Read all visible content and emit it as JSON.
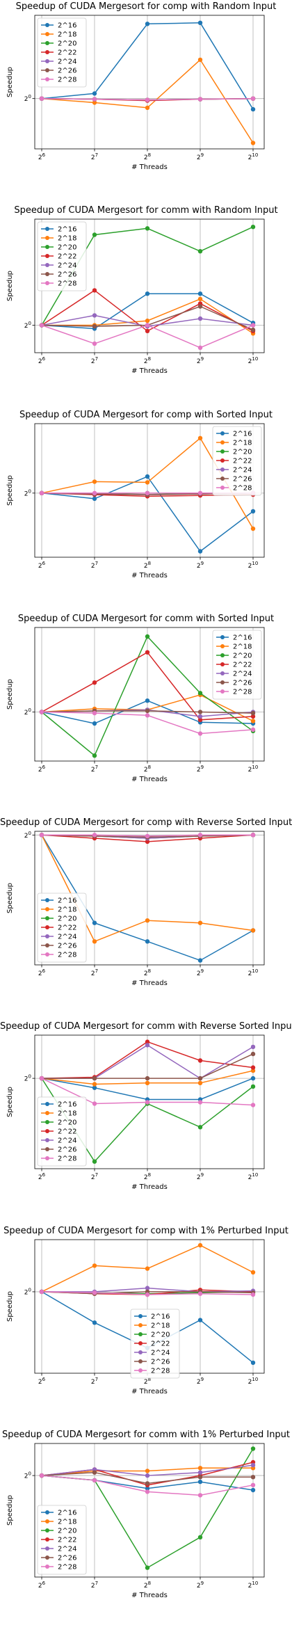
{
  "chart_data": [
    {
      "type": "line",
      "title": "Speedup of CUDA Mergesort for comp with Random Input",
      "xlabel": "# Threads",
      "ylabel": "Speedup",
      "x_ticks": [
        {
          "b": "2",
          "e": "6"
        },
        {
          "b": "2",
          "e": "7"
        },
        {
          "b": "2",
          "e": "8"
        },
        {
          "b": "2",
          "e": "9"
        },
        {
          "b": "2",
          "e": "10"
        }
      ],
      "y_tick": {
        "b": "2",
        "e": "0"
      },
      "grid": true,
      "legend": "top-left",
      "series": [
        {
          "name": "2^16",
          "color": "#1f77b4",
          "values": [
            1.0,
            1.08,
            3.1,
            3.15,
            0.85
          ]
        },
        {
          "name": "2^18",
          "color": "#ff7f0e",
          "values": [
            1.0,
            0.94,
            0.87,
            1.8,
            0.51
          ]
        },
        {
          "name": "2^20",
          "color": "#2ca02c",
          "values": [
            1.0,
            0.99,
            0.98,
            0.99,
            1.0
          ]
        },
        {
          "name": "2^22",
          "color": "#d62728",
          "values": [
            1.0,
            0.99,
            0.97,
            0.99,
            1.0
          ]
        },
        {
          "name": "2^24",
          "color": "#9467bd",
          "values": [
            1.0,
            0.99,
            0.98,
            0.99,
            1.0
          ]
        },
        {
          "name": "2^26",
          "color": "#8c564b",
          "values": [
            1.0,
            0.99,
            0.98,
            0.99,
            1.0
          ]
        },
        {
          "name": "2^28",
          "color": "#e377c2",
          "values": [
            1.0,
            0.99,
            0.98,
            0.99,
            1.0
          ]
        }
      ]
    },
    {
      "type": "line",
      "title": "Speedup of CUDA Mergesort for comm with Random Input",
      "xlabel": "# Threads",
      "ylabel": "Speedup",
      "x_ticks": [
        {
          "b": "2",
          "e": "6"
        },
        {
          "b": "2",
          "e": "7"
        },
        {
          "b": "2",
          "e": "8"
        },
        {
          "b": "2",
          "e": "9"
        },
        {
          "b": "2",
          "e": "10"
        }
      ],
      "y_tick": {
        "b": "2",
        "e": "0"
      },
      "grid": true,
      "legend": "top-left",
      "series": [
        {
          "name": "2^16",
          "color": "#1f77b4",
          "values": [
            1.0,
            0.97,
            1.32,
            1.32,
            1.02
          ]
        },
        {
          "name": "2^18",
          "color": "#ff7f0e",
          "values": [
            1.0,
            1.0,
            1.04,
            1.26,
            0.93
          ]
        },
        {
          "name": "2^20",
          "color": "#2ca02c",
          "values": [
            1.0,
            2.22,
            2.35,
            1.92,
            2.38
          ]
        },
        {
          "name": "2^22",
          "color": "#d62728",
          "values": [
            1.0,
            1.36,
            0.95,
            1.21,
            0.95
          ]
        },
        {
          "name": "2^24",
          "color": "#9467bd",
          "values": [
            1.0,
            1.09,
            0.99,
            1.06,
            1.0
          ]
        },
        {
          "name": "2^26",
          "color": "#8c564b",
          "values": [
            1.0,
            0.99,
            1.0,
            1.18,
            0.96
          ]
        },
        {
          "name": "2^28",
          "color": "#e377c2",
          "values": [
            1.0,
            0.85,
            1.0,
            0.82,
            1.0
          ]
        }
      ]
    },
    {
      "type": "line",
      "title": "Speedup of CUDA Mergesort for comp with Sorted Input",
      "xlabel": "# Threads",
      "ylabel": "Speedup",
      "x_ticks": [
        {
          "b": "2",
          "e": "6"
        },
        {
          "b": "2",
          "e": "7"
        },
        {
          "b": "2",
          "e": "8"
        },
        {
          "b": "2",
          "e": "9"
        },
        {
          "b": "2",
          "e": "10"
        }
      ],
      "y_tick": {
        "b": "2",
        "e": "0"
      },
      "grid": true,
      "legend": "top-right",
      "series": [
        {
          "name": "2^16",
          "color": "#1f77b4",
          "values": [
            1.0,
            0.93,
            1.24,
            0.47,
            0.79
          ]
        },
        {
          "name": "2^18",
          "color": "#ff7f0e",
          "values": [
            1.0,
            1.16,
            1.15,
            2.04,
            0.63
          ]
        },
        {
          "name": "2^20",
          "color": "#2ca02c",
          "values": [
            1.0,
            0.99,
            1.0,
            0.99,
            1.0
          ]
        },
        {
          "name": "2^22",
          "color": "#d62728",
          "values": [
            1.0,
            0.98,
            0.96,
            0.97,
            0.98
          ]
        },
        {
          "name": "2^24",
          "color": "#9467bd",
          "values": [
            1.0,
            0.99,
            0.98,
            0.99,
            1.0
          ]
        },
        {
          "name": "2^26",
          "color": "#8c564b",
          "values": [
            1.0,
            0.99,
            0.98,
            0.99,
            1.0
          ]
        },
        {
          "name": "2^28",
          "color": "#e377c2",
          "values": [
            1.0,
            1.0,
            1.0,
            1.0,
            1.0
          ]
        }
      ]
    },
    {
      "type": "line",
      "title": "Speedup of CUDA Mergesort for comm with Sorted Input",
      "xlabel": "# Threads",
      "ylabel": "Speedup",
      "x_ticks": [
        {
          "b": "2",
          "e": "6"
        },
        {
          "b": "2",
          "e": "7"
        },
        {
          "b": "2",
          "e": "8"
        },
        {
          "b": "2",
          "e": "9"
        },
        {
          "b": "2",
          "e": "10"
        }
      ],
      "y_tick": {
        "b": "2",
        "e": "0"
      },
      "grid": true,
      "legend": "top-right",
      "series": [
        {
          "name": "2^16",
          "color": "#1f77b4",
          "values": [
            1.0,
            0.9,
            1.11,
            0.91,
            0.9
          ]
        },
        {
          "name": "2^18",
          "color": "#ff7f0e",
          "values": [
            1.0,
            1.03,
            1.02,
            1.17,
            0.92
          ]
        },
        {
          "name": "2^20",
          "color": "#2ca02c",
          "values": [
            1.0,
            0.67,
            2.0,
            1.19,
            0.84
          ]
        },
        {
          "name": "2^22",
          "color": "#d62728",
          "values": [
            1.0,
            1.31,
            1.73,
            0.93,
            0.96
          ]
        },
        {
          "name": "2^24",
          "color": "#9467bd",
          "values": [
            1.0,
            1.01,
            1.02,
            0.96,
            1.0
          ]
        },
        {
          "name": "2^26",
          "color": "#8c564b",
          "values": [
            1.0,
            1.01,
            1.01,
            1.0,
            0.99
          ]
        },
        {
          "name": "2^28",
          "color": "#e377c2",
          "values": [
            1.0,
            0.99,
            0.97,
            0.82,
            0.85
          ]
        }
      ]
    },
    {
      "type": "line",
      "title": "Speedup of CUDA Mergesort for comp with Reverse Sorted Input",
      "xlabel": "# Threads",
      "ylabel": "Speedup",
      "x_ticks": [
        {
          "b": "2",
          "e": "6"
        },
        {
          "b": "2",
          "e": "7"
        },
        {
          "b": "2",
          "e": "8"
        },
        {
          "b": "2",
          "e": "9"
        },
        {
          "b": "2",
          "e": "10"
        }
      ],
      "y_tick": {
        "b": "2",
        "e": "0"
      },
      "grid": true,
      "legend": "bottom-left",
      "series": [
        {
          "name": "2^16",
          "color": "#1f77b4",
          "values": [
            1.0,
            0.44,
            0.37,
            0.31,
            0.41
          ]
        },
        {
          "name": "2^18",
          "color": "#ff7f0e",
          "values": [
            1.0,
            0.37,
            0.45,
            0.44,
            0.41
          ]
        },
        {
          "name": "2^20",
          "color": "#2ca02c",
          "values": [
            1.0,
            0.99,
            0.97,
            0.99,
            1.0
          ]
        },
        {
          "name": "2^22",
          "color": "#d62728",
          "values": [
            1.0,
            0.97,
            0.94,
            0.97,
            1.0
          ]
        },
        {
          "name": "2^24",
          "color": "#9467bd",
          "values": [
            1.0,
            0.99,
            0.97,
            0.99,
            1.0
          ]
        },
        {
          "name": "2^26",
          "color": "#8c564b",
          "values": [
            1.0,
            0.99,
            0.98,
            0.99,
            1.0
          ]
        },
        {
          "name": "2^28",
          "color": "#e377c2",
          "values": [
            1.0,
            1.0,
            0.99,
            1.0,
            1.0
          ]
        }
      ]
    },
    {
      "type": "line",
      "title": "Speedup of CUDA Mergesort for comm with Reverse Sorted Input",
      "xlabel": "# Threads",
      "ylabel": "Speedup",
      "x_ticks": [
        {
          "b": "2",
          "e": "6"
        },
        {
          "b": "2",
          "e": "7"
        },
        {
          "b": "2",
          "e": "8"
        },
        {
          "b": "2",
          "e": "9"
        },
        {
          "b": "2",
          "e": "10"
        }
      ],
      "y_tick": {
        "b": "2",
        "e": "0"
      },
      "grid": true,
      "legend": "bottom-left",
      "series": [
        {
          "name": "2^16",
          "color": "#1f77b4",
          "values": [
            1.0,
            0.92,
            0.83,
            0.83,
            1.0
          ]
        },
        {
          "name": "2^18",
          "color": "#ff7f0e",
          "values": [
            1.0,
            0.95,
            0.96,
            0.96,
            1.07
          ]
        },
        {
          "name": "2^20",
          "color": "#2ca02c",
          "values": [
            1.0,
            0.48,
            0.8,
            0.65,
            0.93
          ]
        },
        {
          "name": "2^22",
          "color": "#d62728",
          "values": [
            1.0,
            1.01,
            1.38,
            1.17,
            1.1
          ]
        },
        {
          "name": "2^24",
          "color": "#9467bd",
          "values": [
            1.0,
            1.0,
            1.34,
            1.0,
            1.32
          ]
        },
        {
          "name": "2^26",
          "color": "#8c564b",
          "values": [
            1.0,
            1.0,
            1.0,
            1.0,
            1.24
          ]
        },
        {
          "name": "2^28",
          "color": "#e377c2",
          "values": [
            1.0,
            0.8,
            0.81,
            0.81,
            0.79
          ]
        }
      ]
    },
    {
      "type": "line",
      "title": "Speedup of CUDA Mergesort for comp with 1% Perturbed Input",
      "xlabel": "# Threads",
      "ylabel": "Speedup",
      "x_ticks": [
        {
          "b": "2",
          "e": "6"
        },
        {
          "b": "2",
          "e": "7"
        },
        {
          "b": "2",
          "e": "8"
        },
        {
          "b": "2",
          "e": "9"
        },
        {
          "b": "2",
          "e": "10"
        }
      ],
      "y_tick": {
        "b": "2",
        "e": "0"
      },
      "grid": true,
      "legend": "center",
      "series": [
        {
          "name": "2^16",
          "color": "#1f77b4",
          "values": [
            1.0,
            0.72,
            0.55,
            0.74,
            0.47
          ]
        },
        {
          "name": "2^18",
          "color": "#ff7f0e",
          "values": [
            1.0,
            1.32,
            1.28,
            1.64,
            1.23
          ]
        },
        {
          "name": "2^20",
          "color": "#2ca02c",
          "values": [
            1.0,
            0.99,
            0.98,
            0.99,
            1.0
          ]
        },
        {
          "name": "2^22",
          "color": "#d62728",
          "values": [
            1.0,
            0.98,
            0.97,
            1.02,
            1.0
          ]
        },
        {
          "name": "2^24",
          "color": "#9467bd",
          "values": [
            1.0,
            1.0,
            1.04,
            1.0,
            1.01
          ]
        },
        {
          "name": "2^26",
          "color": "#8c564b",
          "values": [
            1.0,
            0.98,
            1.0,
            1.0,
            0.99
          ]
        },
        {
          "name": "2^28",
          "color": "#e377c2",
          "values": [
            1.0,
            0.99,
            0.97,
            0.98,
            0.97
          ]
        }
      ]
    },
    {
      "type": "line",
      "title": "Speedup of CUDA Mergesort for comm with 1% Perturbed Input",
      "xlabel": "# Threads",
      "ylabel": "Speedup",
      "x_ticks": [
        {
          "b": "2",
          "e": "6"
        },
        {
          "b": "2",
          "e": "7"
        },
        {
          "b": "2",
          "e": "8"
        },
        {
          "b": "2",
          "e": "9"
        },
        {
          "b": "2",
          "e": "10"
        }
      ],
      "y_tick": {
        "b": "2",
        "e": "0"
      },
      "grid": true,
      "legend": "bottom-left",
      "series": [
        {
          "name": "2^16",
          "color": "#1f77b4",
          "values": [
            1.0,
            0.97,
            0.92,
            0.96,
            0.91
          ]
        },
        {
          "name": "2^18",
          "color": "#ff7f0e",
          "values": [
            1.0,
            1.03,
            1.03,
            1.05,
            1.05
          ]
        },
        {
          "name": "2^20",
          "color": "#2ca02c",
          "values": [
            1.0,
            0.97,
            0.55,
            0.67,
            1.19
          ]
        },
        {
          "name": "2^22",
          "color": "#d62728",
          "values": [
            1.0,
            1.04,
            0.94,
            1.0,
            1.09
          ]
        },
        {
          "name": "2^24",
          "color": "#9467bd",
          "values": [
            1.0,
            1.04,
            1.0,
            1.02,
            1.07
          ]
        },
        {
          "name": "2^26",
          "color": "#8c564b",
          "values": [
            1.0,
            1.02,
            0.95,
            0.99,
            0.99
          ]
        },
        {
          "name": "2^28",
          "color": "#e377c2",
          "values": [
            1.0,
            0.97,
            0.9,
            0.88,
            0.94
          ]
        }
      ]
    }
  ]
}
